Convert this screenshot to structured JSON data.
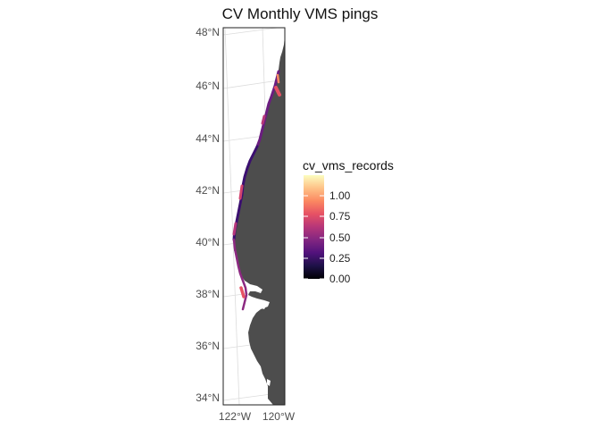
{
  "title": "CV Monthly VMS pings",
  "lat_labels": [
    "48°N",
    "46°N",
    "44°N",
    "42°N",
    "40°N",
    "38°N",
    "36°N",
    "34°N"
  ],
  "lon_labels": [
    "122°W",
    "120°W"
  ],
  "legend": {
    "title": "cv_vms_records",
    "ticks": [
      "1.00",
      "0.75",
      "0.50",
      "0.25",
      "0.00"
    ],
    "tick_values": [
      1.0,
      0.75,
      0.5,
      0.25,
      0.0
    ],
    "range": [
      0,
      1.25
    ],
    "palette": "magma"
  },
  "colors": {
    "land": "#4d4d4d",
    "panel_border": "#222222",
    "graticule": "#dcdcdc",
    "palette_stops": [
      "#000004",
      "#1d1147",
      "#51127c",
      "#822681",
      "#b63679",
      "#e65164",
      "#fb8861",
      "#fec287",
      "#fcfdbf"
    ]
  }
}
